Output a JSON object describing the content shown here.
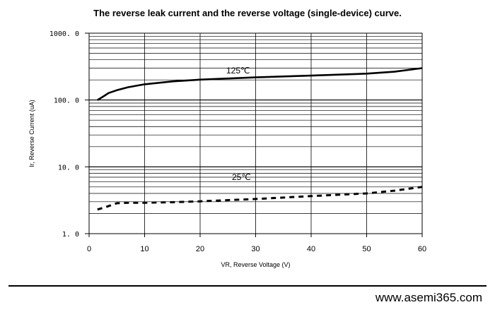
{
  "chart_data": {
    "type": "line",
    "title": "The reverse leak current and the reverse voltage (single-device) curve.",
    "xlabel": "VR, Reverse Voltage (V)",
    "ylabel": "Ir, Reverse Current (uA)",
    "xlim": [
      0,
      60
    ],
    "ylim": [
      1.0,
      1000.0
    ],
    "yscale": "log",
    "grid": true,
    "x_ticks": [
      0,
      10,
      20,
      30,
      40,
      50,
      60
    ],
    "x_tick_labels": [
      "0",
      "10",
      "20",
      "30",
      "40",
      "50",
      "60"
    ],
    "y_ticks": [
      1.0,
      10.0,
      100.0,
      1000.0
    ],
    "y_tick_labels": [
      "1. 0",
      "10. 0",
      "100. 0",
      "1000. 0"
    ],
    "series": [
      {
        "name": "125℃",
        "style": "solid",
        "x": [
          1.5,
          2.5,
          3.5,
          5,
          7,
          10,
          15,
          20,
          30,
          40,
          50,
          55,
          60
        ],
        "y": [
          100,
          112,
          127,
          140,
          155,
          172,
          190,
          202,
          218,
          232,
          248,
          265,
          300
        ]
      },
      {
        "name": "25℃",
        "style": "dashed",
        "x": [
          1.5,
          3,
          5,
          7,
          10,
          15,
          20,
          30,
          40,
          50,
          55,
          60
        ],
        "y": [
          2.3,
          2.5,
          2.85,
          2.9,
          2.9,
          2.95,
          3.05,
          3.3,
          3.65,
          4.0,
          4.4,
          5.0
        ]
      }
    ]
  },
  "footer": {
    "website": "www.asemi365.com"
  }
}
